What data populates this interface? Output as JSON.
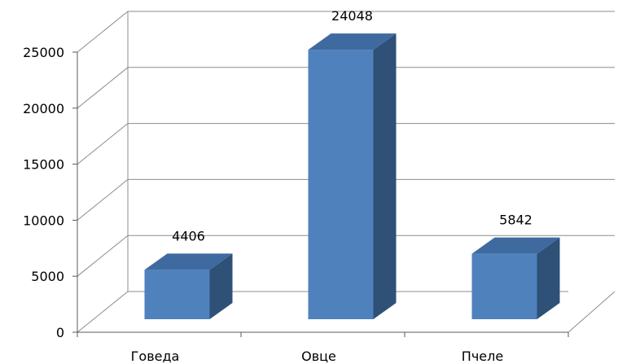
{
  "chart_data": {
    "type": "bar",
    "style": "3d-column",
    "categories": [
      "Говеда",
      "Овце",
      "Пчеле"
    ],
    "values": [
      4406,
      24048,
      5842
    ],
    "data_labels": [
      "4406",
      "24048",
      "5842"
    ],
    "yticks": [
      "0",
      "5000",
      "10000",
      "15000",
      "20000",
      "25000"
    ],
    "ylim": [
      0,
      25000
    ],
    "grid": true,
    "legend": "none",
    "colors": {
      "bar_front": "#4f81bd",
      "bar_top": "#3f6aa0",
      "bar_side": "#2f5077",
      "grid": "#8c8c8c",
      "axis": "#595959"
    }
  }
}
